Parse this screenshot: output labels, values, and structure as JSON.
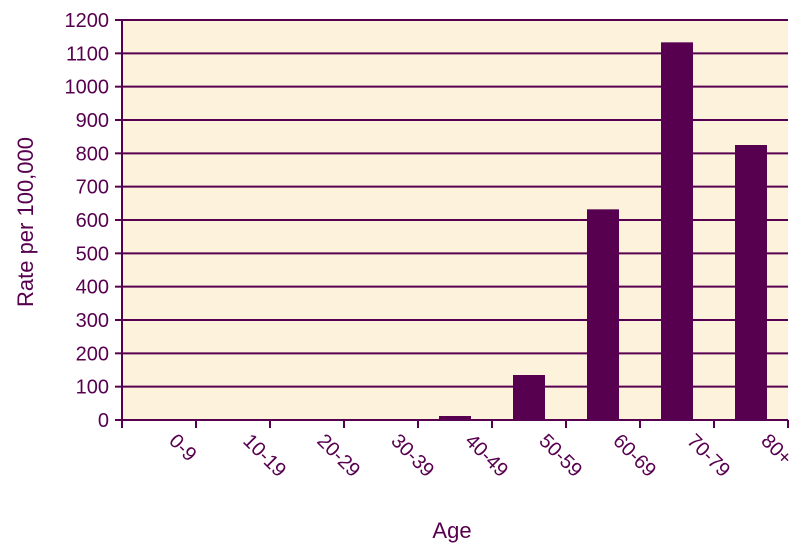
{
  "chart_data": {
    "type": "bar",
    "title": "",
    "xlabel": "Age",
    "ylabel": "Rate per 100,000",
    "categories": [
      "0-9",
      "10-19",
      "20-29",
      "30-39",
      "40-49",
      "50-59",
      "60-69",
      "70-79",
      "80+"
    ],
    "values": [
      3,
      0.5,
      0.5,
      0.5,
      12,
      135,
      632,
      1133,
      825
    ],
    "ylim": [
      0,
      1200
    ],
    "yticks": [
      0,
      100,
      200,
      300,
      400,
      500,
      600,
      700,
      800,
      900,
      1000,
      1100,
      1200
    ],
    "grid": true,
    "legend": "none",
    "colors": {
      "bar": "#57004f",
      "plot_background": "#fdf3dc",
      "text": "#57004f",
      "gridline": "#57004f"
    }
  }
}
